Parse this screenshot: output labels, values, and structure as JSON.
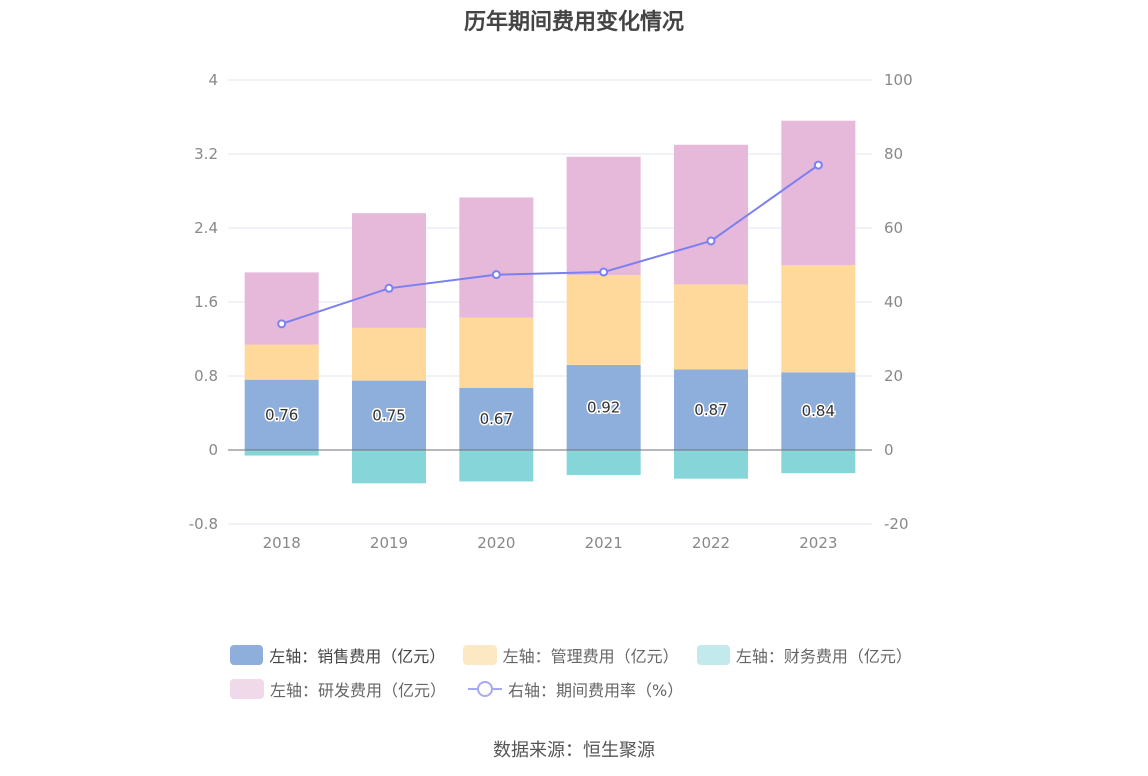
{
  "title": "历年期间费用变化情况",
  "source": "数据来源：恒生聚源",
  "legend": [
    {
      "label": "左轴：销售费用（亿元）",
      "color": "#8eaedb"
    },
    {
      "label": "左轴：管理费用（亿元）",
      "color": "#fde8c4"
    },
    {
      "label": "左轴：财务费用（亿元）",
      "color": "#c2e9ec"
    },
    {
      "label": "左轴：研发费用（亿元）",
      "color": "#f0daea"
    },
    {
      "label": "右轴：期间费用率（%）",
      "color": "#a6a8f4"
    }
  ],
  "chart_data": {
    "type": "bar",
    "stacked": true,
    "categories": [
      "2018",
      "2019",
      "2020",
      "2021",
      "2022",
      "2023"
    ],
    "left_axis": {
      "ticks": [
        "4",
        "3.2",
        "2.4",
        "1.6",
        "0.8",
        "0",
        "-0.8"
      ],
      "ylim": [
        -0.8,
        4
      ]
    },
    "right_axis": {
      "ticks": [
        "100",
        "80",
        "60",
        "40",
        "20",
        "0",
        "-20"
      ],
      "ylim": [
        -20,
        100
      ]
    },
    "series": [
      {
        "name": "左轴：销售费用（亿元）",
        "axis": "left",
        "type": "bar",
        "color": "#8eaedb",
        "values": [
          0.76,
          0.75,
          0.67,
          0.92,
          0.87,
          0.84
        ],
        "show_labels": true
      },
      {
        "name": "左轴：管理费用（亿元）",
        "axis": "left",
        "type": "bar",
        "color": "#fed99b",
        "values": [
          0.38,
          0.57,
          0.76,
          0.97,
          0.92,
          1.16
        ]
      },
      {
        "name": "左轴：财务费用（亿元）",
        "axis": "left",
        "type": "bar",
        "color": "#86d5d8",
        "values": [
          -0.06,
          -0.36,
          -0.34,
          -0.27,
          -0.31,
          -0.25
        ]
      },
      {
        "name": "左轴：研发费用（亿元）",
        "axis": "left",
        "type": "bar",
        "color": "#e6b9db",
        "values": [
          0.78,
          1.24,
          1.3,
          1.28,
          1.51,
          1.56
        ]
      },
      {
        "name": "右轴：期间费用率（%）",
        "axis": "right",
        "type": "line",
        "color": "#7b80f0",
        "values": [
          34.1,
          43.7,
          47.4,
          48.1,
          56.5,
          77.0
        ]
      }
    ],
    "grid": true,
    "legend_position": "bottom"
  }
}
